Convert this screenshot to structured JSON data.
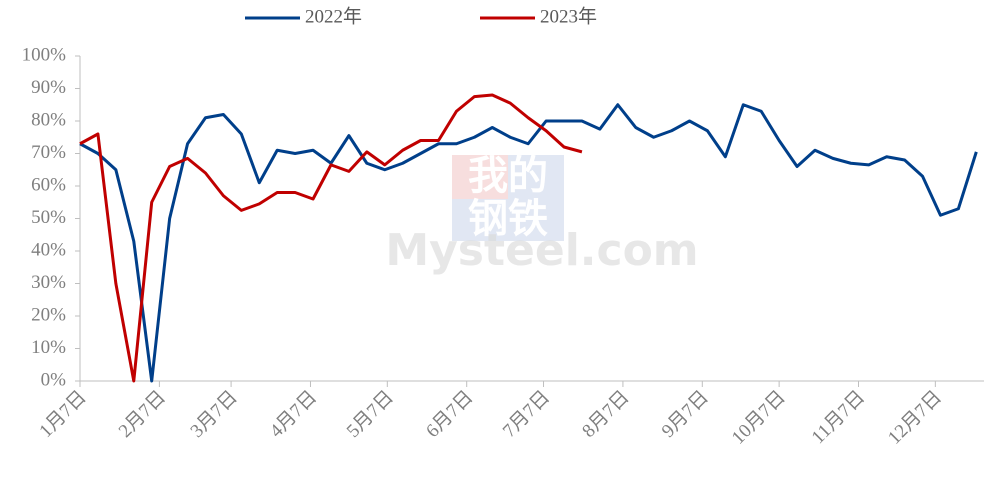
{
  "chart_data": {
    "type": "line",
    "watermark": [
      "我的",
      "钢铁",
      "Mysteel.com"
    ],
    "xlim": [
      0,
      353
    ],
    "xticks": [
      {
        "value": 0,
        "label": "1月7日"
      },
      {
        "value": 31,
        "label": "2月7日"
      },
      {
        "value": 59,
        "label": "3月7日"
      },
      {
        "value": 90,
        "label": "4月7日"
      },
      {
        "value": 120,
        "label": "5月7日"
      },
      {
        "value": 151,
        "label": "6月7日"
      },
      {
        "value": 181,
        "label": "7月7日"
      },
      {
        "value": 212,
        "label": "8月7日"
      },
      {
        "value": 243,
        "label": "9月7日"
      },
      {
        "value": 273,
        "label": "10月7日"
      },
      {
        "value": 304,
        "label": "11月7日"
      },
      {
        "value": 334,
        "label": "12月7日"
      }
    ],
    "ylim": [
      0,
      100
    ],
    "yticks": [
      {
        "value": 0,
        "label": "0%"
      },
      {
        "value": 10,
        "label": "10%"
      },
      {
        "value": 20,
        "label": "20%"
      },
      {
        "value": 30,
        "label": "30%"
      },
      {
        "value": 40,
        "label": "40%"
      },
      {
        "value": 50,
        "label": "50%"
      },
      {
        "value": 60,
        "label": "60%"
      },
      {
        "value": 70,
        "label": "70%"
      },
      {
        "value": 80,
        "label": "80%"
      },
      {
        "value": 90,
        "label": "90%"
      },
      {
        "value": 100,
        "label": "100%"
      }
    ],
    "legend": "top",
    "series": [
      {
        "name": "2022年",
        "color": "#003f8a",
        "x": [
          0,
          7,
          14,
          21,
          28,
          35,
          42,
          49,
          56,
          63,
          70,
          77,
          84,
          91,
          98,
          105,
          112,
          119,
          126,
          133,
          140,
          147,
          154,
          161,
          168,
          175,
          182,
          189,
          196,
          203,
          210,
          217,
          224,
          231,
          238,
          245,
          252,
          259,
          266,
          273,
          280,
          287,
          294,
          301,
          308,
          315,
          322,
          329,
          336,
          343,
          350
        ],
        "values": [
          73,
          70,
          65,
          43,
          0,
          50,
          73,
          81,
          82,
          76,
          61,
          71,
          70,
          71,
          67,
          75.5,
          67,
          65,
          67,
          70,
          73,
          73,
          75,
          78,
          75,
          73,
          80,
          80,
          80,
          77.5,
          85,
          78,
          75,
          77,
          80,
          77,
          69,
          85,
          83,
          74,
          66,
          71,
          68.5,
          67,
          66.5,
          69,
          68,
          63,
          51,
          53,
          70.5
        ]
      },
      {
        "name": "2023年",
        "color": "#c00000",
        "x": [
          0,
          7,
          14,
          21,
          28,
          35,
          42,
          49,
          56,
          63,
          70,
          77,
          84,
          91,
          98,
          105,
          112,
          119,
          126,
          133,
          140,
          147,
          154,
          161,
          168,
          175,
          182,
          189,
          196
        ],
        "values": [
          73,
          76,
          30,
          0,
          55,
          66,
          68.5,
          64,
          57,
          52.5,
          54.5,
          58,
          58,
          56,
          66.5,
          64.5,
          70.5,
          66.5,
          71,
          74,
          74,
          83,
          87.5,
          88,
          85.5,
          81,
          77,
          72,
          70.5
        ]
      }
    ]
  }
}
